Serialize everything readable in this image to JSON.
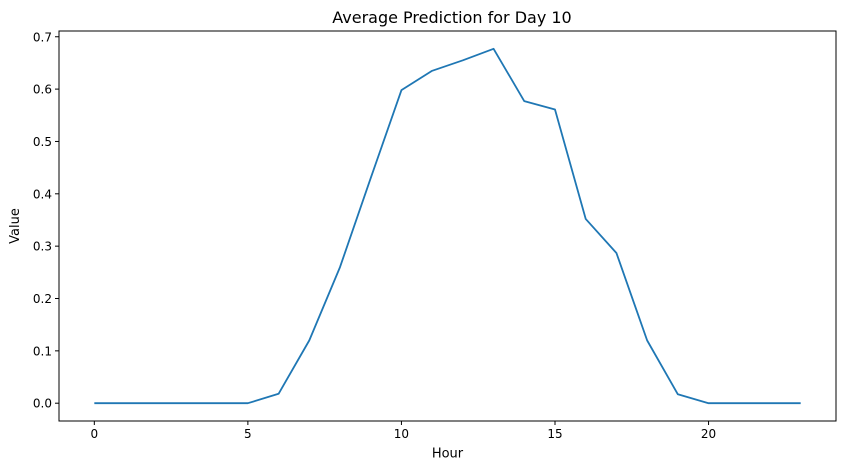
{
  "chart_data": {
    "type": "line",
    "title": "Average Prediction for Day 10",
    "xlabel": "Hour",
    "ylabel": "Value",
    "xlim": [
      -1.15,
      24.15
    ],
    "ylim": [
      -0.034,
      0.711
    ],
    "xticks": [
      0,
      5,
      10,
      15,
      20
    ],
    "xtick_labels": [
      "0",
      "5",
      "10",
      "15",
      "20"
    ],
    "yticks": [
      0.0,
      0.1,
      0.2,
      0.3,
      0.4,
      0.5,
      0.6,
      0.7
    ],
    "ytick_labels": [
      "0.0",
      "0.1",
      "0.2",
      "0.3",
      "0.4",
      "0.5",
      "0.6",
      "0.7"
    ],
    "grid": false,
    "line_color": "#1f77b4",
    "series": [
      {
        "x": [
          0,
          1,
          2,
          3,
          4,
          5,
          6,
          7,
          8,
          9,
          10,
          11,
          12,
          13,
          14,
          15,
          16,
          17,
          18,
          19,
          20,
          21,
          22,
          23
        ],
        "values": [
          0.0,
          0.0,
          0.0,
          0.0,
          0.0,
          0.0,
          0.018,
          0.12,
          0.26,
          0.43,
          0.598,
          0.635,
          0.655,
          0.677,
          0.577,
          0.561,
          0.352,
          0.287,
          0.12,
          0.017,
          0.0,
          0.0,
          0.0,
          0.0
        ]
      }
    ]
  }
}
